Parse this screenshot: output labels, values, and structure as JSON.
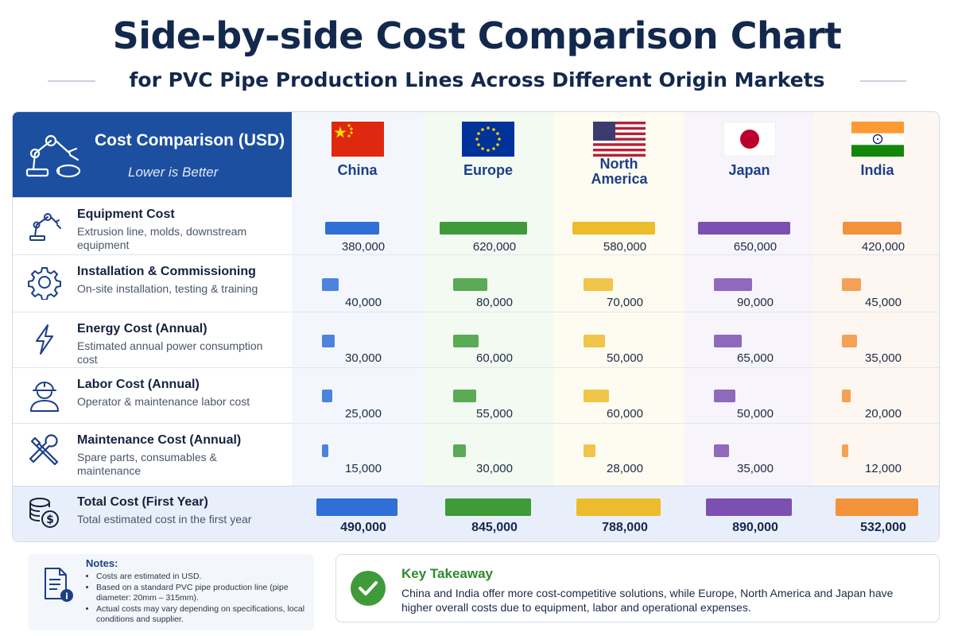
{
  "title": "Side-by-side Cost Comparison Chart",
  "subtitle": "for PVC Pipe Production Lines Across Different Origin Markets",
  "header": {
    "label": "Cost Comparison (USD)",
    "note": "Lower is Better"
  },
  "colors": {
    "China": "#2f6fd6",
    "Europe": "#3f9b3a",
    "North America": "#ecbc2c",
    "Japan": "#7b50b0",
    "India": "#f2923a"
  },
  "chart_data": {
    "type": "bar",
    "categories": [
      "China",
      "Europe",
      "North America",
      "Japan",
      "India"
    ],
    "series": [
      {
        "name": "Equipment Cost",
        "description": "Extrusion line, molds, downstream equipment",
        "icon": "robot-arm-icon",
        "values": [
          380000,
          620000,
          580000,
          650000,
          420000
        ]
      },
      {
        "name": "Installation & Commissioning",
        "description": "On-site installation, testing & training",
        "icon": "gear-icon",
        "values": [
          40000,
          80000,
          70000,
          90000,
          45000
        ]
      },
      {
        "name": "Energy Cost (Annual)",
        "description": "Estimated annual power consumption cost",
        "icon": "lightning-icon",
        "values": [
          30000,
          60000,
          50000,
          65000,
          35000
        ]
      },
      {
        "name": "Labor Cost (Annual)",
        "description": "Operator & maintenance labor cost",
        "icon": "worker-icon",
        "values": [
          25000,
          55000,
          60000,
          50000,
          20000
        ]
      },
      {
        "name": "Maintenance Cost (Annual)",
        "description": "Spare parts, consumables & maintenance",
        "icon": "tools-icon",
        "values": [
          15000,
          30000,
          28000,
          35000,
          12000
        ]
      },
      {
        "name": "Total Cost (First Year)",
        "description": "Total estimated cost in the first year",
        "icon": "coins-icon",
        "values": [
          490000,
          845000,
          788000,
          890000,
          532000
        ]
      }
    ],
    "value_labels": [
      [
        "380,000",
        "620,000",
        "580,000",
        "650,000",
        "420,000"
      ],
      [
        "40,000",
        "80,000",
        "70,000",
        "90,000",
        "45,000"
      ],
      [
        "30,000",
        "60,000",
        "50,000",
        "65,000",
        "35,000"
      ],
      [
        "25,000",
        "55,000",
        "60,000",
        "50,000",
        "20,000"
      ],
      [
        "15,000",
        "30,000",
        "28,000",
        "35,000",
        "12,000"
      ],
      [
        "490,000",
        "845,000",
        "788,000",
        "890,000",
        "532,000"
      ]
    ]
  },
  "notes": {
    "heading": "Notes:",
    "items": [
      "Costs are estimated in USD.",
      "Based on a standard PVC pipe production line (pipe diameter: 20mm – 315mm).",
      "Actual costs may vary depending on specifications, local conditions and supplier."
    ]
  },
  "takeaway": {
    "heading": "Key Takeaway",
    "text": "China and India offer more cost-competitive solutions, while Europe, North America and Japan have higher overall costs due to equipment, labor and operational expenses."
  }
}
